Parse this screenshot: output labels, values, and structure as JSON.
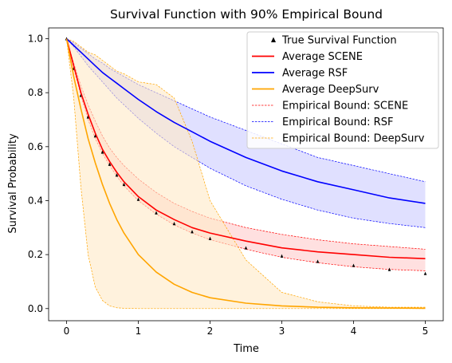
{
  "chart_data": {
    "type": "line",
    "title": "Survival Function with 90% Empirical Bound",
    "xlabel": "Time",
    "ylabel": "Survival Probability",
    "xlim": [
      -0.25,
      5.25
    ],
    "ylim": [
      -0.045,
      1.04
    ],
    "xticks": [
      0,
      1,
      2,
      3,
      4,
      5
    ],
    "xtick_labels": [
      "0",
      "1",
      "2",
      "3",
      "4",
      "5"
    ],
    "yticks": [
      0.0,
      0.2,
      0.4,
      0.6,
      0.8,
      1.0
    ],
    "ytick_labels": [
      "0.0",
      "0.2",
      "0.4",
      "0.6",
      "0.8",
      "1.0"
    ],
    "grid": false,
    "legend_position": "top-right",
    "x": [
      0,
      0.1,
      0.2,
      0.3,
      0.4,
      0.5,
      0.6,
      0.7,
      0.8,
      1.0,
      1.25,
      1.5,
      1.75,
      2.0,
      2.5,
      3.0,
      3.5,
      4.0,
      4.5,
      5.0
    ],
    "series": [
      {
        "name": "True Survival Function",
        "style": "markers",
        "color": "#000000",
        "values": [
          1.0,
          0.89,
          0.79,
          0.71,
          0.64,
          0.58,
          0.535,
          0.495,
          0.46,
          0.405,
          0.355,
          0.315,
          0.285,
          0.26,
          0.225,
          0.195,
          0.175,
          0.16,
          0.145,
          0.13
        ]
      },
      {
        "name": "Average SCENE",
        "style": "line",
        "color": "#ff0000",
        "values": [
          1.0,
          0.9,
          0.8,
          0.72,
          0.65,
          0.59,
          0.545,
          0.505,
          0.47,
          0.415,
          0.365,
          0.33,
          0.3,
          0.28,
          0.25,
          0.225,
          0.21,
          0.2,
          0.19,
          0.185
        ]
      },
      {
        "name": "Average RSF",
        "style": "line",
        "color": "#0000ff",
        "values": [
          1.0,
          0.975,
          0.95,
          0.925,
          0.9,
          0.875,
          0.855,
          0.835,
          0.815,
          0.775,
          0.73,
          0.69,
          0.655,
          0.62,
          0.56,
          0.51,
          0.47,
          0.44,
          0.41,
          0.39
        ]
      },
      {
        "name": "Average DeepSurv",
        "style": "line",
        "color": "#ffa500",
        "values": [
          1.0,
          0.86,
          0.74,
          0.63,
          0.54,
          0.46,
          0.39,
          0.33,
          0.28,
          0.2,
          0.135,
          0.09,
          0.06,
          0.04,
          0.02,
          0.01,
          0.005,
          0.003,
          0.002,
          0.001
        ]
      }
    ],
    "bands": [
      {
        "name": "Empirical Bound: SCENE",
        "color": "#ff0000",
        "fill": "#ffcccc",
        "lower": [
          1.0,
          0.89,
          0.79,
          0.7,
          0.63,
          0.575,
          0.53,
          0.49,
          0.455,
          0.4,
          0.35,
          0.31,
          0.28,
          0.255,
          0.22,
          0.19,
          0.17,
          0.155,
          0.145,
          0.14
        ],
        "upper": [
          1.0,
          0.91,
          0.825,
          0.755,
          0.695,
          0.64,
          0.595,
          0.56,
          0.53,
          0.48,
          0.43,
          0.39,
          0.36,
          0.335,
          0.3,
          0.275,
          0.255,
          0.24,
          0.23,
          0.22
        ]
      },
      {
        "name": "Empirical Bound: RSF",
        "color": "#0000ff",
        "fill": "#ccccff",
        "lower": [
          1.0,
          0.97,
          0.935,
          0.9,
          0.87,
          0.84,
          0.81,
          0.78,
          0.755,
          0.705,
          0.65,
          0.6,
          0.56,
          0.52,
          0.455,
          0.405,
          0.365,
          0.335,
          0.315,
          0.3
        ],
        "upper": [
          1.0,
          0.985,
          0.965,
          0.945,
          0.925,
          0.91,
          0.89,
          0.875,
          0.86,
          0.83,
          0.8,
          0.77,
          0.74,
          0.71,
          0.66,
          0.61,
          0.56,
          0.53,
          0.5,
          0.47
        ]
      },
      {
        "name": "Empirical Bound: DeepSurv",
        "color": "#ffa500",
        "fill": "#ffe9c6",
        "lower": [
          1.0,
          0.78,
          0.45,
          0.2,
          0.08,
          0.03,
          0.01,
          0.003,
          0.001,
          0.0,
          0.0,
          0.0,
          0.0,
          0.0,
          0.0,
          0.0,
          0.0,
          0.0,
          0.0,
          0.0
        ],
        "upper": [
          1.0,
          0.99,
          0.97,
          0.95,
          0.94,
          0.92,
          0.9,
          0.88,
          0.87,
          0.84,
          0.83,
          0.78,
          0.62,
          0.4,
          0.18,
          0.06,
          0.025,
          0.01,
          0.005,
          0.005
        ]
      }
    ],
    "legend": [
      {
        "label": "True Survival Function",
        "kind": "marker",
        "color": "#000000"
      },
      {
        "label": "Average SCENE",
        "kind": "line",
        "color": "#ff0000"
      },
      {
        "label": "Average RSF",
        "kind": "line",
        "color": "#0000ff"
      },
      {
        "label": "Average DeepSurv",
        "kind": "line",
        "color": "#ffa500"
      },
      {
        "label": "Empirical Bound: SCENE",
        "kind": "dashed",
        "color": "#ff0000"
      },
      {
        "label": "Empirical Bound: RSF",
        "kind": "dashed",
        "color": "#0000ff"
      },
      {
        "label": "Empirical Bound: DeepSurv",
        "kind": "dashed",
        "color": "#ffa500"
      }
    ]
  }
}
